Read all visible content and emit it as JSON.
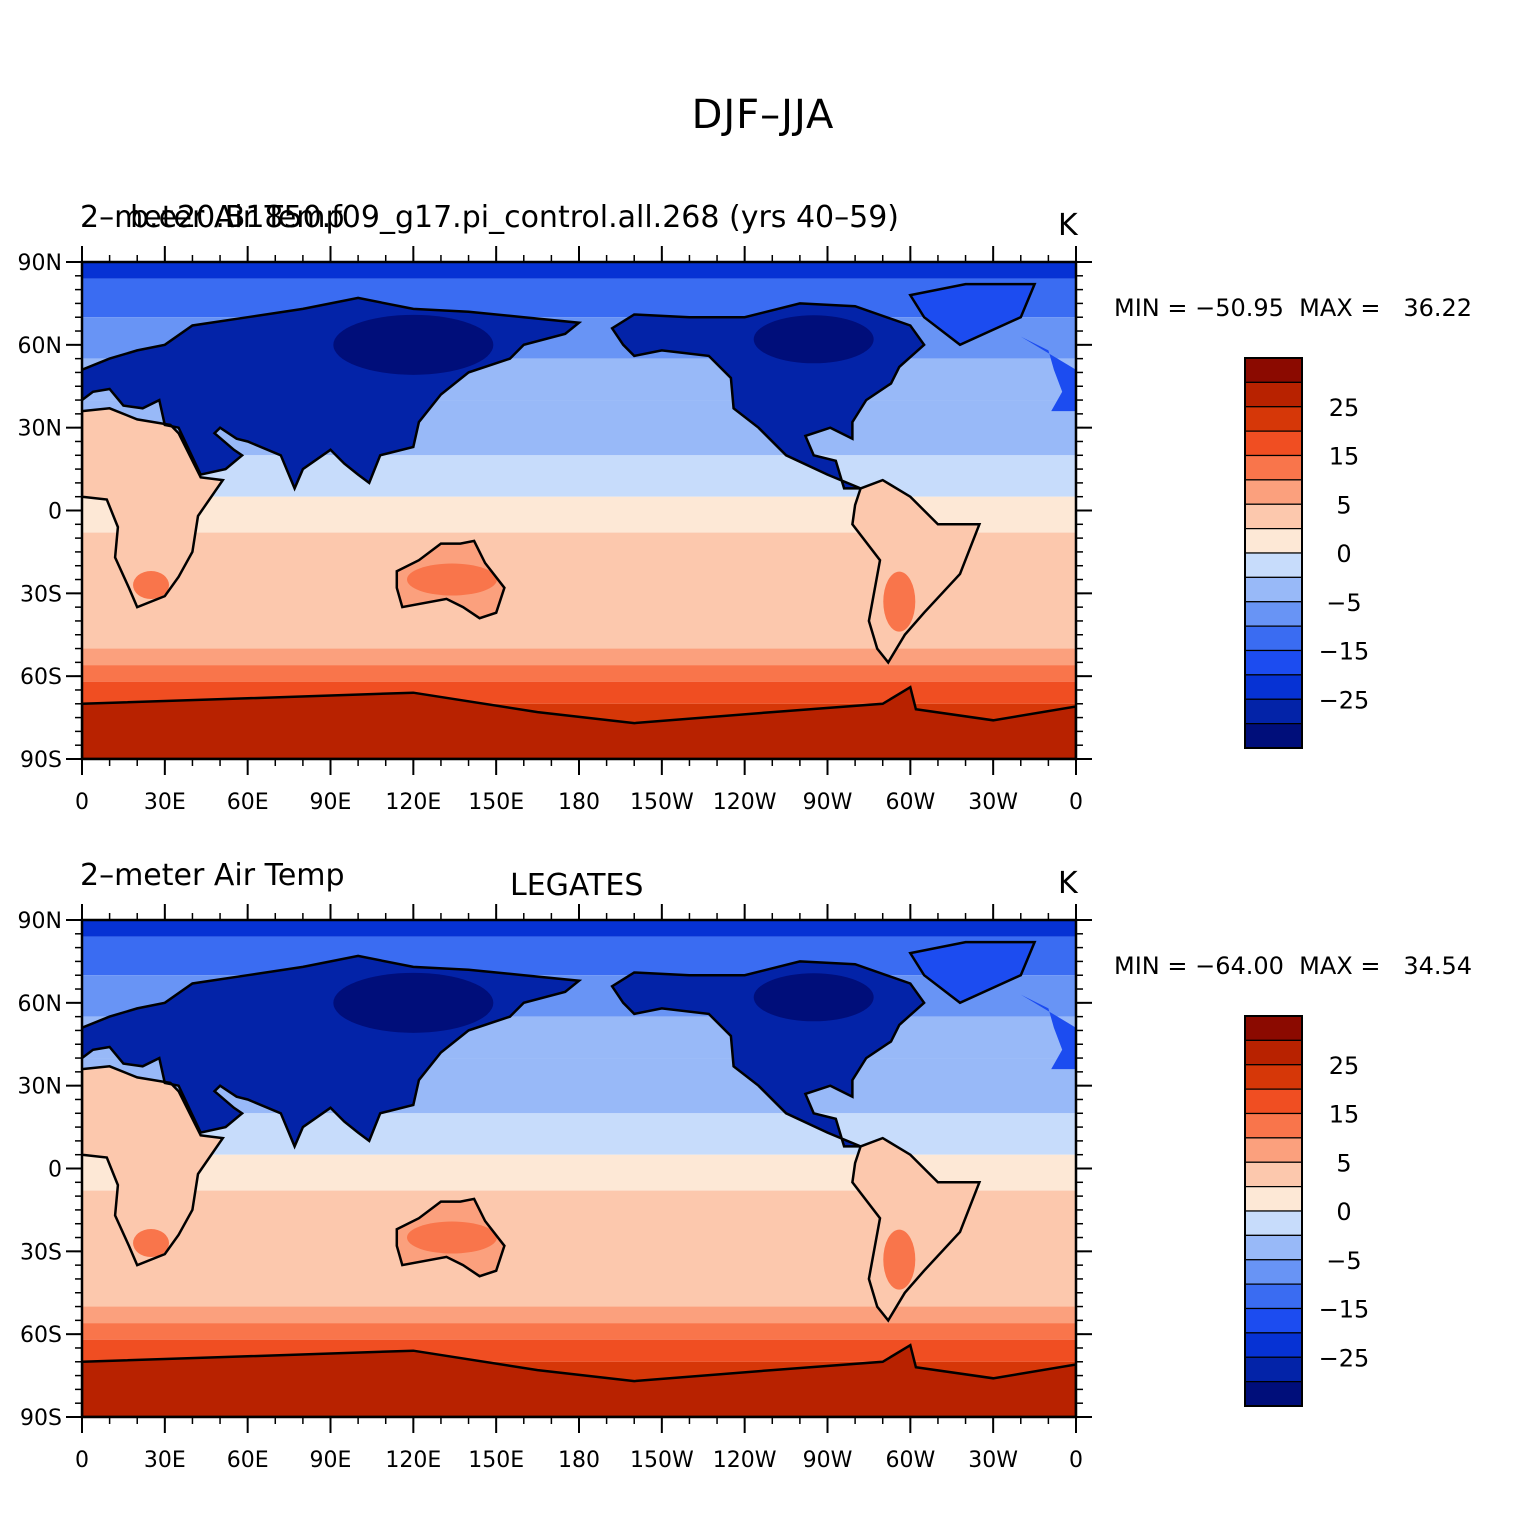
{
  "title": "DJF–JJA",
  "panels": [
    {
      "left_label": "2–meter Air Temp",
      "center_label": "b.e20.B1850.f09_g17.pi_control.all.268 (yrs 40–59)",
      "right_label": "K",
      "min_max": "MIN = −50.95  MAX =   36.22"
    },
    {
      "left_label": "2–meter Air Temp",
      "center_label": "LEGATES",
      "right_label": "K",
      "min_max": "MIN = −64.00  MAX =   34.54"
    }
  ],
  "lat_labels": [
    "90N",
    "60N",
    "30N",
    "0",
    "30S",
    "60S",
    "90S"
  ],
  "lon_labels": [
    "0",
    "30E",
    "60E",
    "90E",
    "120E",
    "150E",
    "180",
    "150W",
    "120W",
    "90W",
    "60W",
    "30W",
    "0"
  ],
  "colorbar": {
    "colors": [
      "#000e7a",
      "#0323a8",
      "#0632d4",
      "#1c4cf0",
      "#3a6cf2",
      "#6894f5",
      "#98b9f8",
      "#c7dcfb",
      "#fde8d6",
      "#fcc8ad",
      "#fba07d",
      "#f9754b",
      "#f04e22",
      "#d63708",
      "#b82200",
      "#8b0a00"
    ],
    "labels": [
      "25",
      "15",
      "5",
      "0",
      "−5",
      "−15",
      "−25"
    ]
  }
}
